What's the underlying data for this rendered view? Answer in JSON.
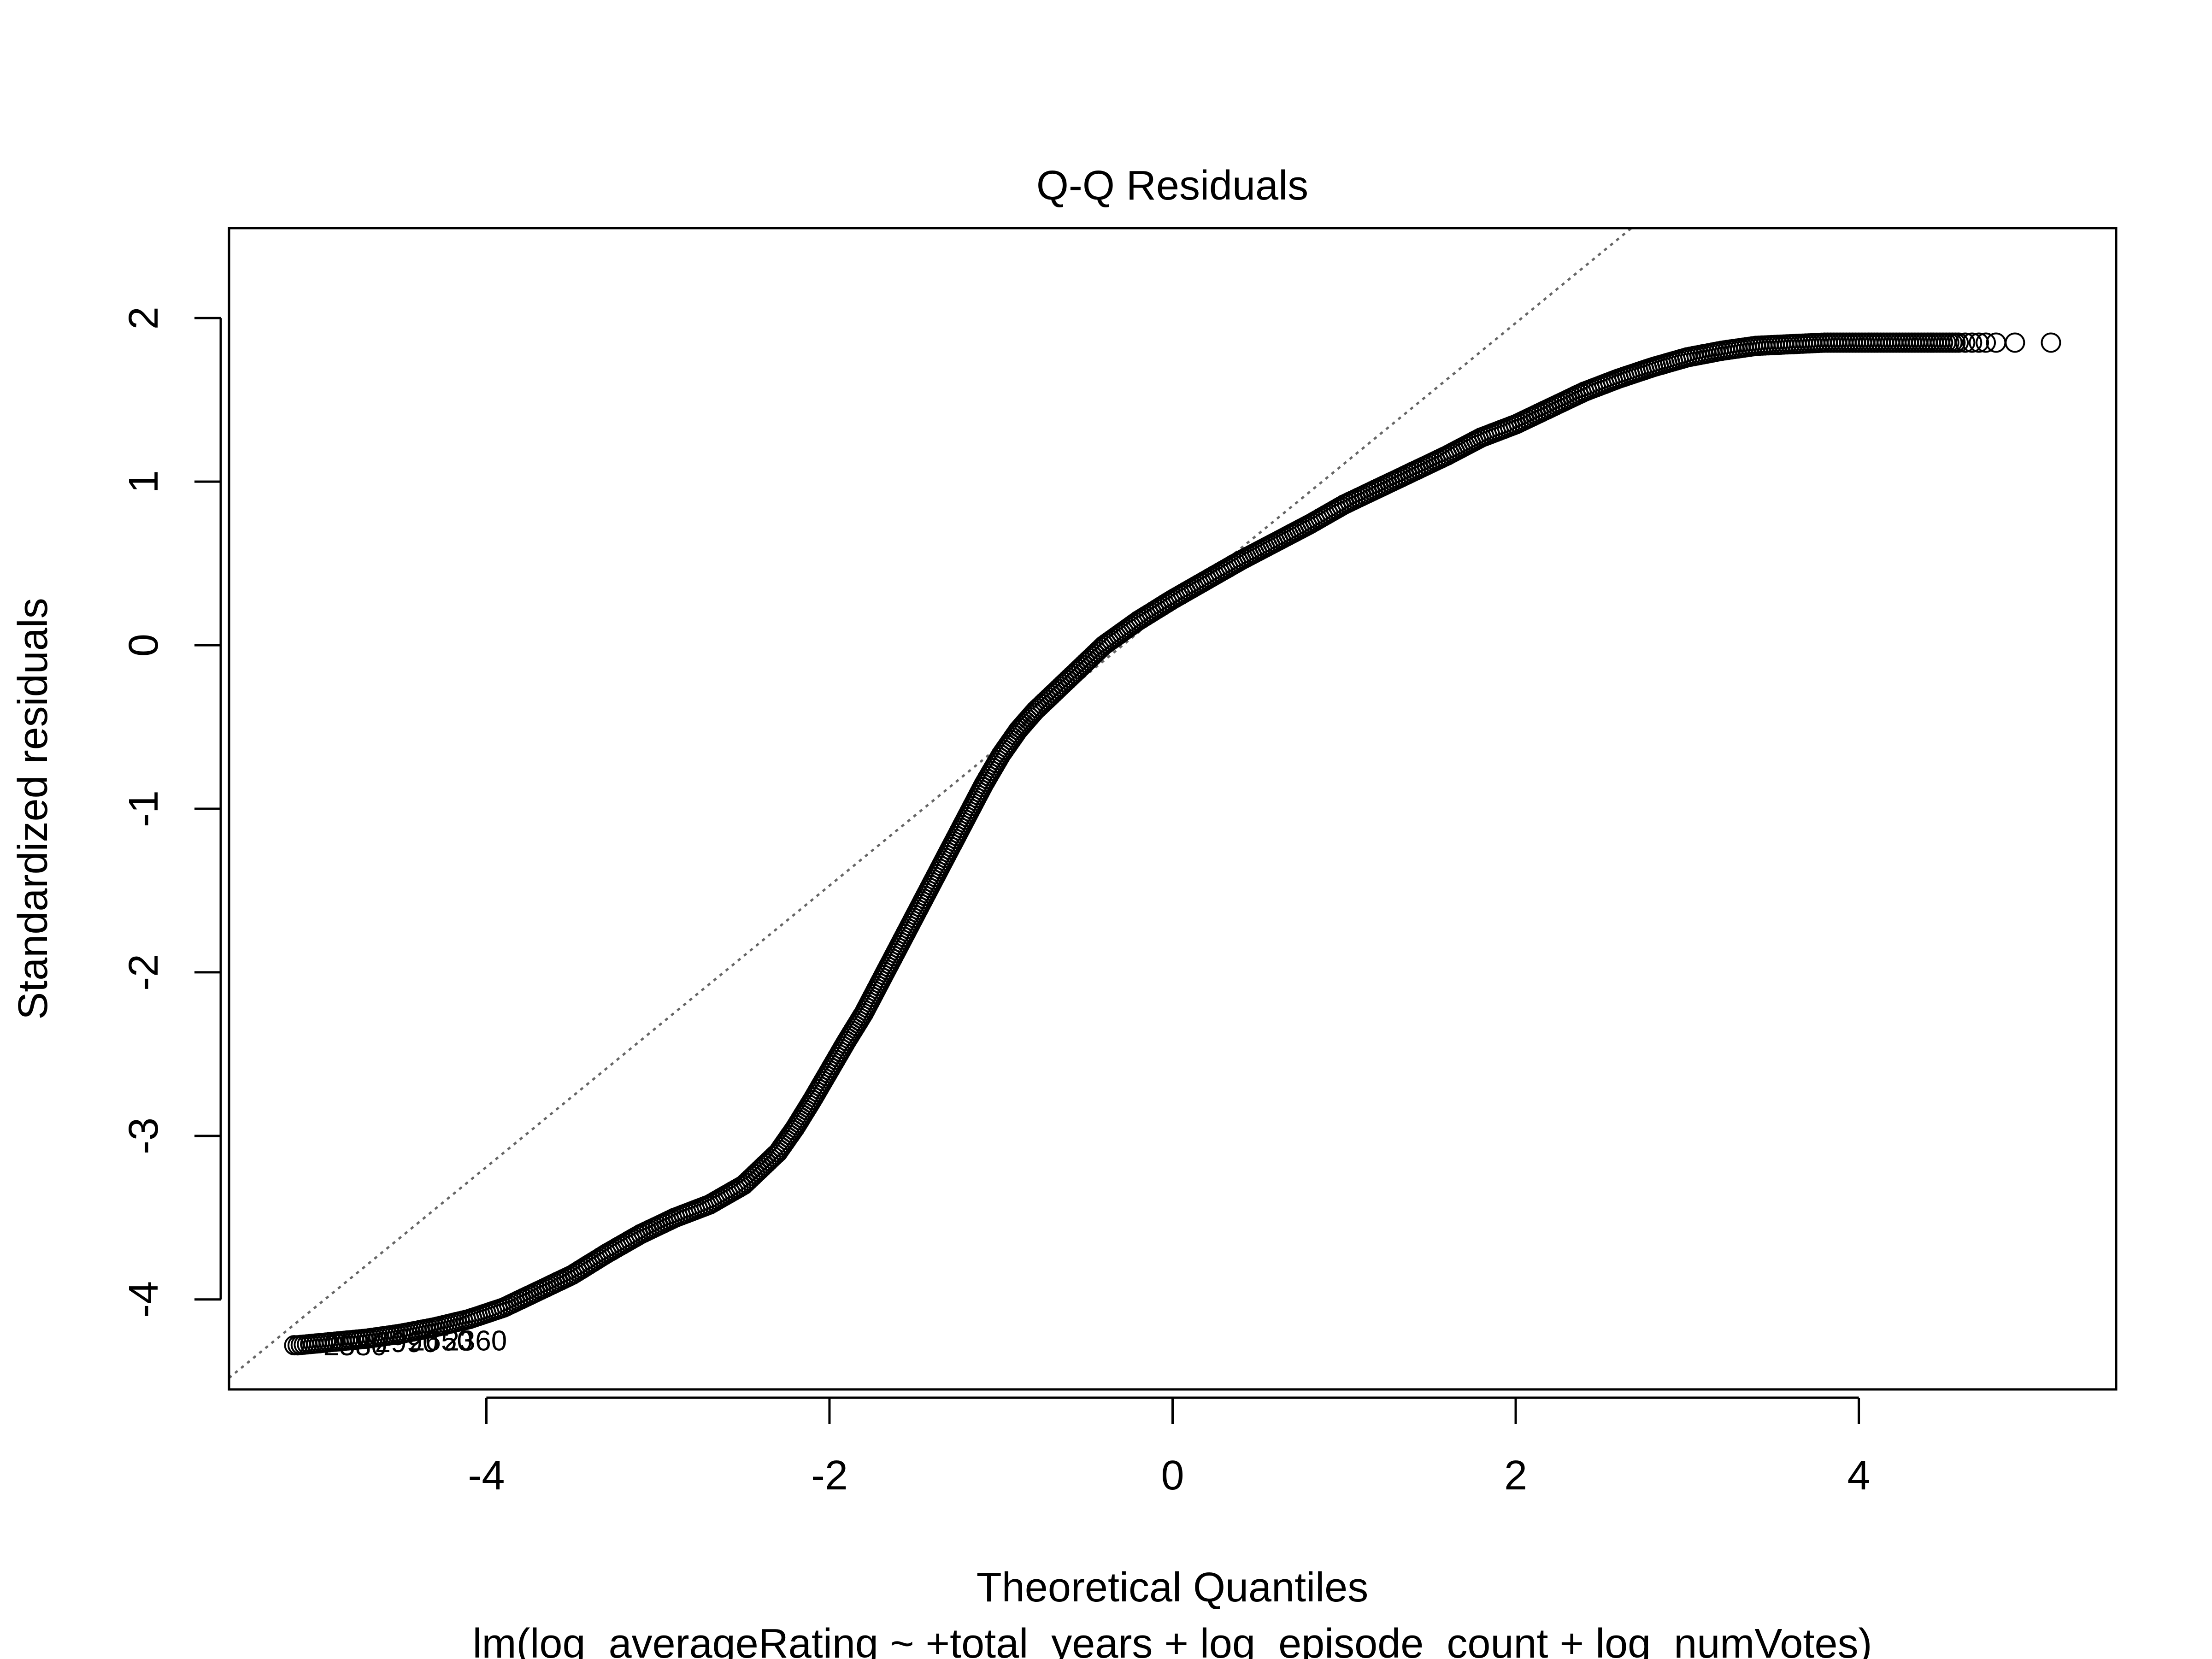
{
  "chart_data": {
    "type": "scatter",
    "title": "Q-Q Residuals",
    "xlabel": "Theoretical Quantiles",
    "ylabel": "Standardized residuals",
    "subtitle": "lm(log_averageRating ~ +total_years + log_episode_count + log_numVotes)",
    "xlim": [
      -5.5,
      5.5
    ],
    "ylim": [
      -4.55,
      2.55
    ],
    "x_ticks": [
      -4,
      -2,
      0,
      2,
      4
    ],
    "y_ticks": [
      -4,
      -3,
      -2,
      -1,
      0,
      1,
      2
    ],
    "x_tick_labels": [
      "-4",
      "-2",
      "0",
      "2",
      "4"
    ],
    "y_tick_labels": [
      "-4",
      "-3",
      "-2",
      "-1",
      "0",
      "1",
      "2"
    ],
    "grid": false,
    "reference_line": {
      "intercept": 0.25,
      "slope": 0.86,
      "style": "dotted",
      "color": "#666666"
    },
    "qq_curve": {
      "x": [
        -5.1,
        -4.9,
        -4.7,
        -4.5,
        -4.3,
        -4.1,
        -3.9,
        -3.7,
        -3.5,
        -3.3,
        -3.1,
        -2.9,
        -2.7,
        -2.5,
        -2.3,
        -2.2,
        -2.1,
        -2.0,
        -1.9,
        -1.8,
        -1.7,
        -1.6,
        -1.5,
        -1.4,
        -1.3,
        -1.2,
        -1.1,
        -1.0,
        -0.9,
        -0.8,
        -0.6,
        -0.4,
        -0.2,
        0.0,
        0.2,
        0.4,
        0.6,
        0.8,
        1.0,
        1.2,
        1.4,
        1.6,
        1.8,
        2.0,
        2.2,
        2.4,
        2.6,
        2.8,
        3.0,
        3.2,
        3.4,
        3.6,
        3.8,
        4.0,
        4.2,
        4.4,
        4.6
      ],
      "y": [
        -4.28,
        -4.26,
        -4.24,
        -4.21,
        -4.17,
        -4.12,
        -4.05,
        -3.95,
        -3.85,
        -3.72,
        -3.6,
        -3.5,
        -3.42,
        -3.3,
        -3.1,
        -2.95,
        -2.78,
        -2.6,
        -2.42,
        -2.25,
        -2.05,
        -1.85,
        -1.65,
        -1.45,
        -1.25,
        -1.05,
        -0.85,
        -0.67,
        -0.52,
        -0.4,
        -0.2,
        0.0,
        0.15,
        0.28,
        0.4,
        0.52,
        0.63,
        0.74,
        0.86,
        0.96,
        1.06,
        1.16,
        1.27,
        1.35,
        1.45,
        1.55,
        1.63,
        1.7,
        1.76,
        1.8,
        1.83,
        1.84,
        1.85,
        1.85,
        1.85,
        1.85,
        1.85
      ]
    },
    "open_points": [
      {
        "x": 4.62,
        "y": 1.85
      },
      {
        "x": 4.66,
        "y": 1.85
      },
      {
        "x": 4.7,
        "y": 1.85
      },
      {
        "x": 4.74,
        "y": 1.85
      },
      {
        "x": 4.8,
        "y": 1.85
      },
      {
        "x": 4.91,
        "y": 1.85
      },
      {
        "x": 5.12,
        "y": 1.85
      },
      {
        "x": -5.12,
        "y": -4.28
      }
    ],
    "point_labels": [
      {
        "text": "2580",
        "x": -4.95,
        "y": -4.28
      },
      {
        "text": "2990",
        "x": -4.65,
        "y": -4.26
      },
      {
        "text": "2650",
        "x": -4.45,
        "y": -4.25
      },
      {
        "text": "2360",
        "x": -4.25,
        "y": -4.25
      }
    ]
  }
}
